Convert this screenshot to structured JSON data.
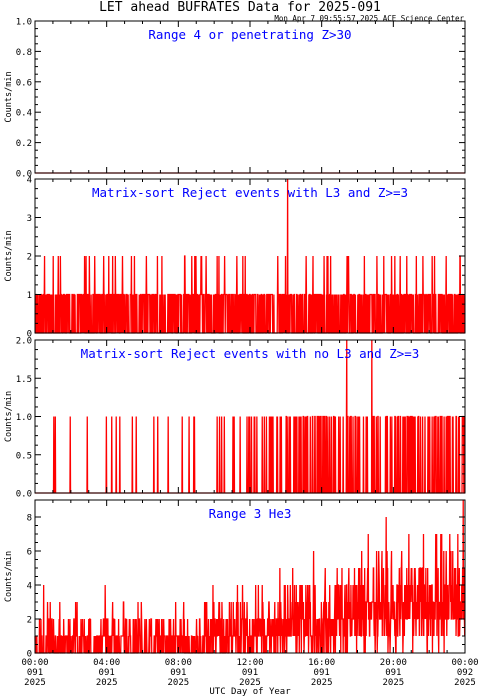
{
  "header": {
    "title": "LET ahead BUFRATES Data for 2025-091",
    "timestamp": "Mon Apr  7 09:55:57 2025 ACE Science Center"
  },
  "colors": {
    "data": "#ff0000",
    "title": "#0000ff",
    "axis": "#000000"
  },
  "x_axis": {
    "label": "UTC Day of Year",
    "ticks": [
      {
        "hour": 0,
        "time": "00:00",
        "doy": "091",
        "year": "2025"
      },
      {
        "hour": 4,
        "time": "04:00",
        "doy": "091",
        "year": "2025"
      },
      {
        "hour": 8,
        "time": "08:00",
        "doy": "091",
        "year": "2025"
      },
      {
        "hour": 12,
        "time": "12:00",
        "doy": "091",
        "year": "2025"
      },
      {
        "hour": 16,
        "time": "16:00",
        "doy": "091",
        "year": "2025"
      },
      {
        "hour": 20,
        "time": "20:00",
        "doy": "091",
        "year": "2025"
      },
      {
        "hour": 24,
        "time": "00:00",
        "doy": "092",
        "year": "2025"
      }
    ],
    "range_hours": [
      0,
      24
    ]
  },
  "chart_data": [
    {
      "type": "line",
      "title": "Range 4 or   penetrating Z>30",
      "ylabel": "Counts/min",
      "ylim": [
        0,
        1
      ],
      "yticks": [
        "0.0",
        "0.2",
        "0.4",
        "0.6",
        "0.8",
        "1.0"
      ],
      "ytick_values": [
        0,
        0.2,
        0.4,
        0.6,
        0.8,
        1.0
      ],
      "series": [
        {
          "values": [
            0,
            0
          ],
          "x_hours": [
            0,
            24
          ]
        }
      ],
      "description_level": "constant 0"
    },
    {
      "type": "line",
      "title": "Matrix-sort Reject events with L3 and Z>=3",
      "ylabel": "Counts/min",
      "ylim": [
        0,
        4
      ],
      "yticks": [
        "0",
        "1",
        "2",
        "3",
        "4"
      ],
      "ytick_values": [
        0,
        1,
        2,
        3,
        4
      ],
      "stats": {
        "typical": 1,
        "frequent_max": 2,
        "peak": 4,
        "peak_hour": 14.1
      },
      "seed": 11,
      "profile": "l3"
    },
    {
      "type": "line",
      "title": "Matrix-sort Reject events with no L3 and Z>=3",
      "ylabel": "Counts/min",
      "ylim": [
        0,
        2
      ],
      "yticks": [
        "0.0",
        "0.5",
        "1.0",
        "1.5",
        "2.0"
      ],
      "ytick_values": [
        0,
        0.5,
        1.0,
        1.5,
        2.0
      ],
      "stats": {
        "typical": 0,
        "frequent_max": 1,
        "peak": 2,
        "peak_hours": [
          17.4,
          18.8
        ]
      },
      "seed": 23,
      "profile": "nol3"
    },
    {
      "type": "line",
      "title": "Range 3 He3",
      "ylabel": "Counts/min",
      "ylim": [
        0,
        9
      ],
      "yticks": [
        "0",
        "2",
        "4",
        "6",
        "8"
      ],
      "ytick_values": [
        0,
        2,
        4,
        6,
        8
      ],
      "stats": {
        "early_range": [
          0,
          2
        ],
        "late_range": [
          1,
          6
        ],
        "peak": 9,
        "peak_hour": 23.9
      },
      "seed": 37,
      "profile": "he3"
    }
  ]
}
